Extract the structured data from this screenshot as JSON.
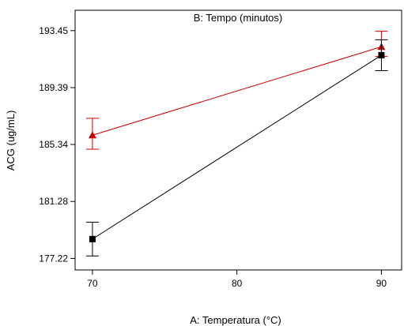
{
  "chart_data": {
    "type": "line",
    "title": "B: Tempo (minutos)",
    "xlabel": "A: Temperatura (°C)",
    "ylabel": "ACG (ug/mL)",
    "xlim": [
      68.8,
      91.4
    ],
    "ylim": [
      176.4,
      194.9
    ],
    "x_ticks": [
      "70",
      "80",
      "90"
    ],
    "y_ticks": [
      "177.22",
      "181.28",
      "185.34",
      "189.39",
      "193.45"
    ],
    "grid": false,
    "legend": "none",
    "series": [
      {
        "marker": "triangle",
        "color": "#cc0000",
        "points": [
          {
            "x": 70,
            "y": 186.0,
            "err_low": 185.0,
            "err_high": 187.2
          },
          {
            "x": 90,
            "y": 192.3,
            "err_low": 191.6,
            "err_high": 193.4
          }
        ]
      },
      {
        "marker": "square",
        "color": "#000000",
        "points": [
          {
            "x": 70,
            "y": 178.6,
            "err_low": 177.4,
            "err_high": 179.8
          },
          {
            "x": 90,
            "y": 191.7,
            "err_low": 190.6,
            "err_high": 192.8
          }
        ]
      }
    ]
  }
}
